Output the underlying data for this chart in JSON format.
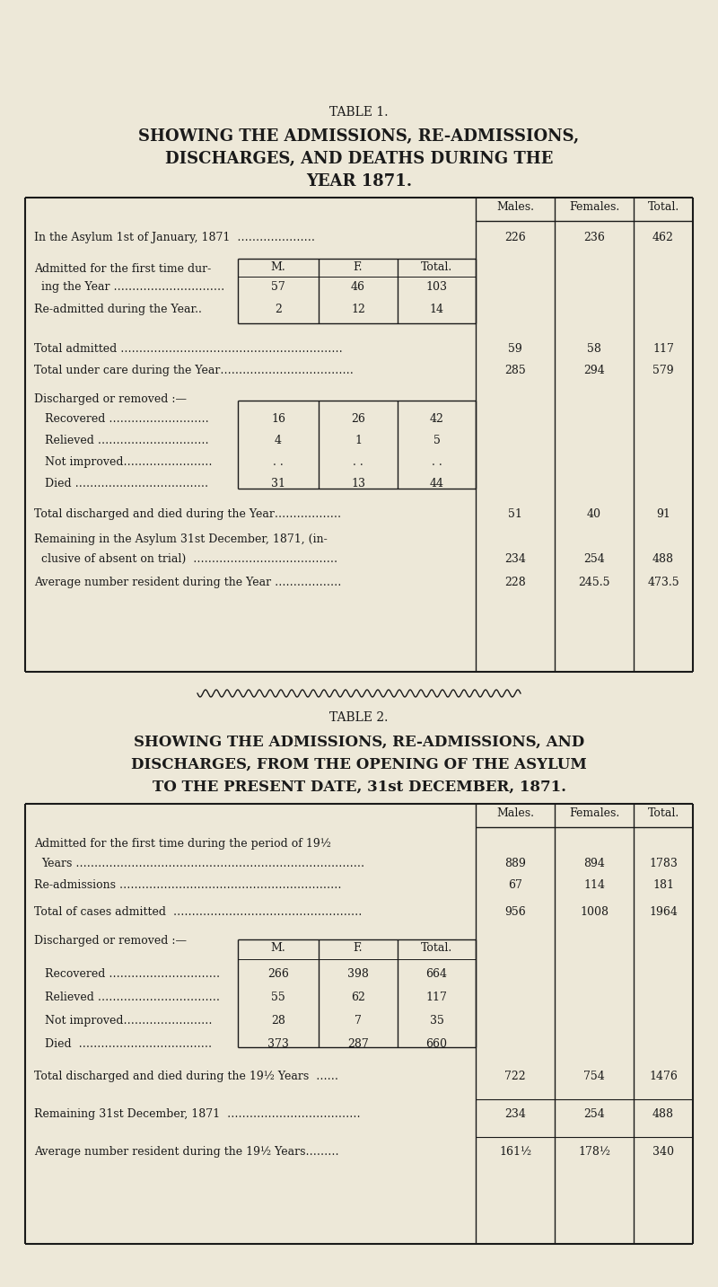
{
  "bg_color": "#ede8d8",
  "text_color": "#1a1a1a",
  "fig_width": 8.0,
  "fig_height": 14.33,
  "table1": {
    "title_line1": "TABLE 1.",
    "title_line2": "SHOWING THE ADMISSIONS, RE-ADMISSIONS,",
    "title_line3": "DISCHARGES, AND DEATHS DURING THE",
    "title_line4": "YEAR 1871.",
    "col_headers": [
      "Males.",
      "Females.",
      "Total."
    ],
    "row1_label": "In the Asylum 1st of January, 1871  …………………",
    "row1_vals": [
      "226",
      "236",
      "462"
    ],
    "inner_header": [
      "M.",
      "F.",
      "Total."
    ],
    "admitted_label1": "Admitted for the first time dur-",
    "admitted_label2": "ing the Year …………………………",
    "admitted_vals": [
      "57",
      "46",
      "103"
    ],
    "readmitted_label": "Re-admitted during the Year..",
    "readmitted_vals": [
      "2",
      "12",
      "14"
    ],
    "total_admitted_label": "Total admitted ……………………………………………………",
    "total_admitted_vals": [
      "59",
      "58",
      "117"
    ],
    "total_care_label": "Total under care during the Year………………………………",
    "total_care_vals": [
      "285",
      "294",
      "579"
    ],
    "discharged_header": "Discharged or removed :—",
    "recovered_label": "Recovered ………………………",
    "recovered_vals": [
      "16",
      "26",
      "42"
    ],
    "relieved_label": "Relieved …………………………",
    "relieved_vals": [
      "4",
      "1",
      "5"
    ],
    "not_improved_label": "Not improved……………………",
    "not_improved_vals": [
      ". .",
      ". .",
      ". ."
    ],
    "died_label": "Died ………………………………",
    "died_vals": [
      "31",
      "13",
      "44"
    ],
    "total_disch_label": "Total discharged and died during the Year………………",
    "total_disch_vals": [
      "51",
      "40",
      "91"
    ],
    "remaining_label1": "Remaining in the Asylum 31st December, 1871, (in-",
    "remaining_label2": "clusive of absent on trial)  …………………………………",
    "remaining_vals": [
      "234",
      "254",
      "488"
    ],
    "average_label": "Average number resident during the Year ………………",
    "average_vals": [
      "228",
      "245.5",
      "473.5"
    ]
  },
  "table2": {
    "title_line1": "TABLE 2.",
    "title_line2": "SHOWING THE ADMISSIONS, RE-ADMISSIONS, AND",
    "title_line3": "DISCHARGES, FROM THE OPENING OF THE ASYLUM",
    "title_line4": "TO THE PRESENT DATE, 31st DECEMBER, 1871.",
    "col_headers": [
      "Males.",
      "Females.",
      "Total."
    ],
    "admitted_label1": "Admitted for the first time during the period of 19½",
    "admitted_label2": "Years ……………………………………………………………………",
    "admitted_vals": [
      "889",
      "894",
      "1783"
    ],
    "readmitted_label": "Re-admissions ……………………………………………………",
    "readmitted_vals": [
      "67",
      "114",
      "181"
    ],
    "total_cases_label": "Total of cases admitted  ……………………………………………",
    "total_cases_vals": [
      "956",
      "1008",
      "1964"
    ],
    "inner_header": [
      "M.",
      "F.",
      "Total."
    ],
    "discharged_header": "Discharged or removed :—",
    "recovered_label": "Recovered …………………………",
    "recovered_vals": [
      "266",
      "398",
      "664"
    ],
    "relieved_label": "Relieved ……………………………",
    "relieved_vals": [
      "55",
      "62",
      "117"
    ],
    "not_improved_label": "Not improved……………………",
    "not_improved_vals": [
      "28",
      "7",
      "35"
    ],
    "died_label": "Died  ………………………………",
    "died_vals": [
      "373",
      "287",
      "660"
    ],
    "total_disch_label": "Total discharged and died during the 19½ Years  ……",
    "total_disch_vals": [
      "722",
      "754",
      "1476"
    ],
    "remaining_label": "Remaining 31st December, 1871  ………………………………",
    "remaining_vals": [
      "234",
      "254",
      "488"
    ],
    "average_label": "Average number resident during the 19½ Years………",
    "average_vals": [
      "161½",
      "178½",
      "340"
    ]
  }
}
